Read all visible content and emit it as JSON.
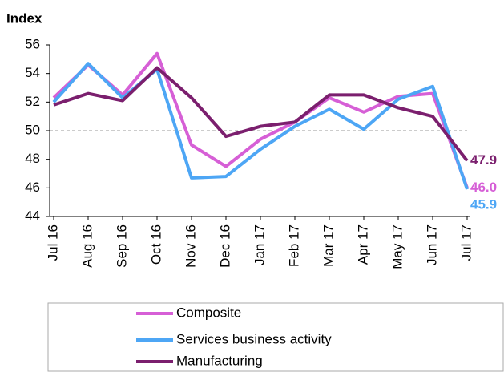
{
  "chart_data": {
    "type": "line",
    "y_label": "Index",
    "categories": [
      "Jul 16",
      "Aug 16",
      "Sep 16",
      "Oct 16",
      "Nov 16",
      "Dec 16",
      "Jan 17",
      "Feb 17",
      "Mar 17",
      "Apr 17",
      "May 17",
      "Jun 17",
      "Jul 17"
    ],
    "series": [
      {
        "name": "Composite",
        "color": "#d65fd6",
        "values": [
          52.3,
          54.6,
          52.5,
          55.4,
          49.0,
          47.5,
          49.4,
          50.6,
          52.3,
          51.3,
          52.4,
          52.6,
          46.0
        ],
        "value_labels": [
          null,
          null,
          null,
          null,
          null,
          null,
          null,
          null,
          null,
          null,
          null,
          null,
          "46.0"
        ]
      },
      {
        "name": "Services business activity",
        "color": "#4da6f5",
        "values": [
          52.0,
          54.7,
          52.3,
          54.3,
          46.7,
          46.8,
          48.7,
          50.3,
          51.5,
          50.1,
          52.2,
          53.1,
          45.9
        ],
        "value_labels": [
          null,
          null,
          null,
          null,
          null,
          null,
          null,
          null,
          null,
          null,
          null,
          null,
          "45.9"
        ]
      },
      {
        "name": "Manufacturing",
        "color": "#7b1f6e",
        "values": [
          51.8,
          52.6,
          52.1,
          54.4,
          52.3,
          49.6,
          50.3,
          50.6,
          52.5,
          52.5,
          51.6,
          51.0,
          47.9
        ],
        "value_labels": [
          null,
          null,
          null,
          null,
          null,
          null,
          null,
          null,
          null,
          null,
          null,
          null,
          "47.9"
        ]
      }
    ],
    "ylim": [
      44,
      56
    ],
    "yticks": [
      44,
      46,
      48,
      50,
      52,
      54,
      56
    ],
    "reference_line": 50,
    "legend": "bottom"
  }
}
